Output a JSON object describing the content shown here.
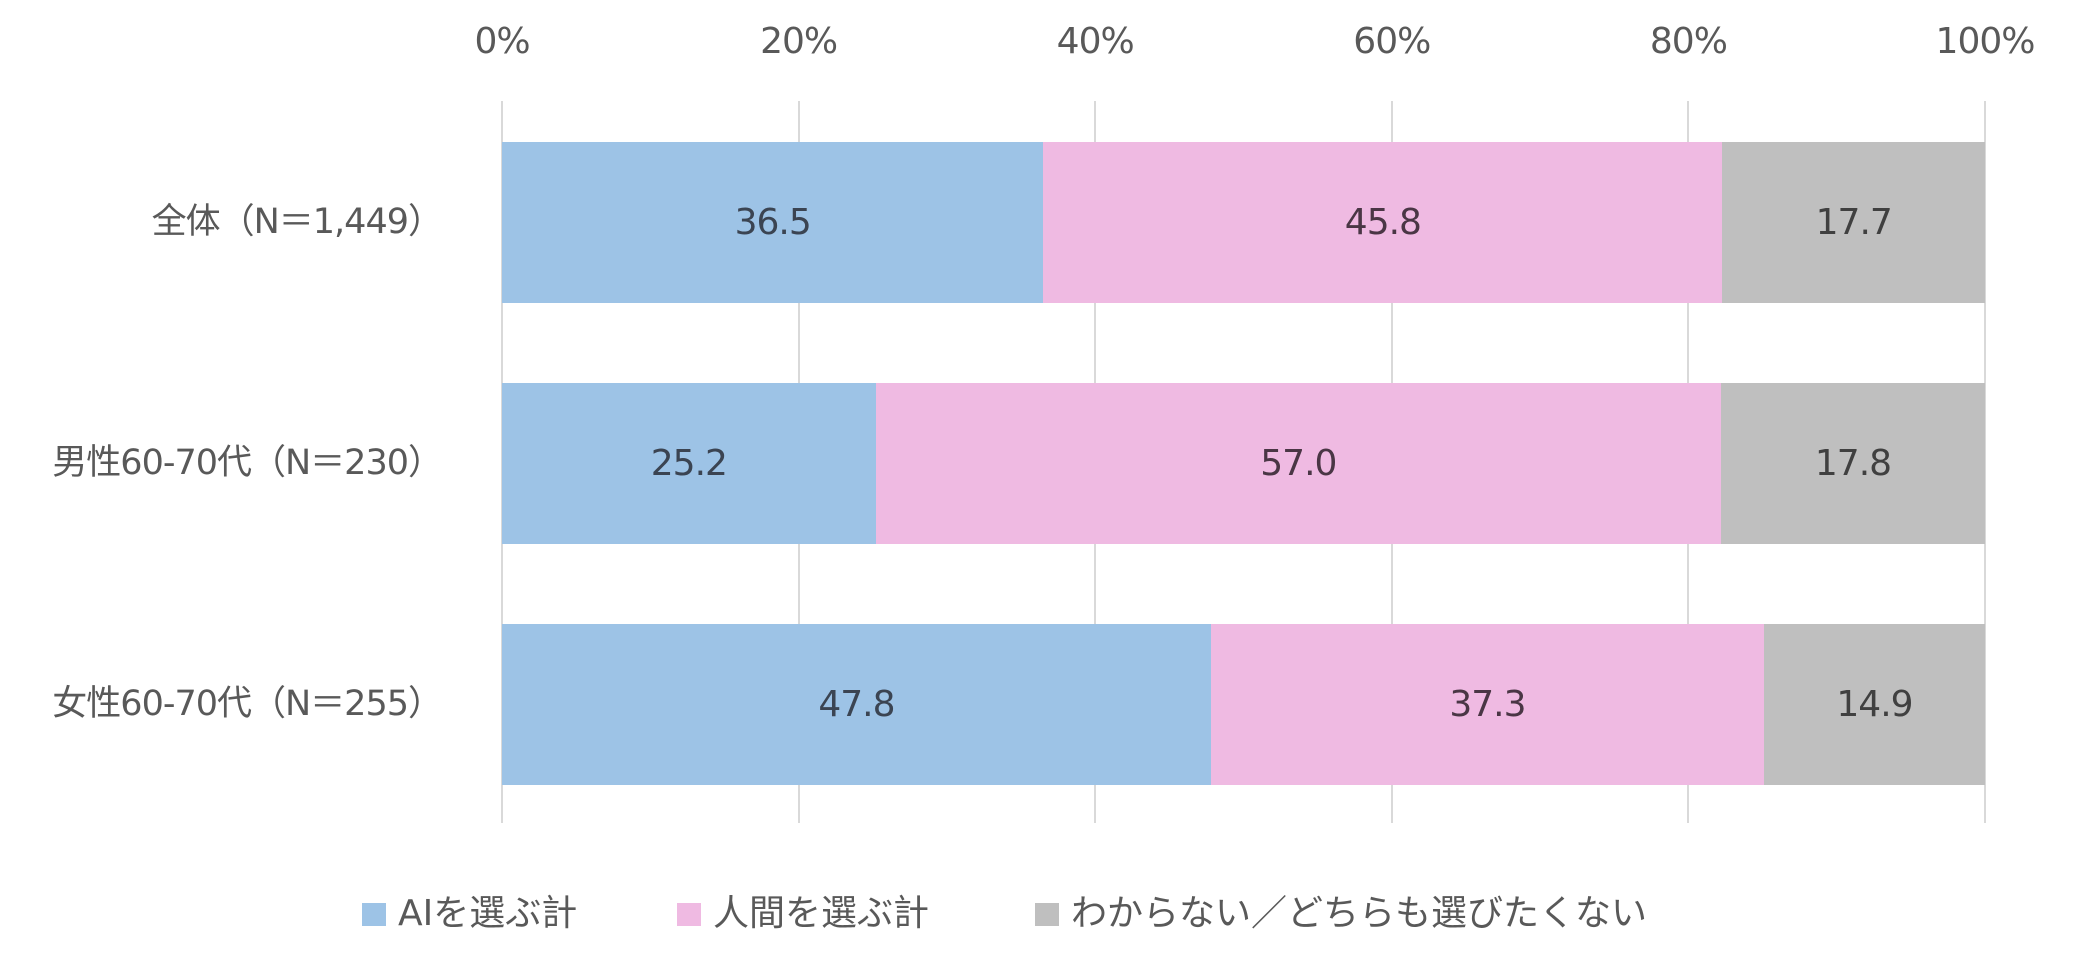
{
  "chart_data": {
    "type": "bar",
    "orientation": "horizontal",
    "stacked": "percent",
    "title": "",
    "xlabel": "",
    "ylabel": "",
    "xlim": [
      0,
      100
    ],
    "x_ticks": [
      "0%",
      "20%",
      "40%",
      "60%",
      "80%",
      "100%"
    ],
    "x_tick_values": [
      0,
      20,
      40,
      60,
      80,
      100
    ],
    "x_axis_position": "top",
    "grid": "vertical",
    "legend_position": "bottom",
    "categories": [
      "全体（N＝1,449）",
      "男性60-70代（N＝230）",
      "女性60-70代（N＝255）"
    ],
    "series": [
      {
        "name": "AIを選ぶ計",
        "color": "#9DC3E6",
        "label_color": "#3B4452",
        "values": [
          36.5,
          25.2,
          47.8
        ],
        "labels": [
          "36.5",
          "25.2",
          "47.8"
        ]
      },
      {
        "name": "人間を選ぶ計",
        "color": "#EFBAE2",
        "label_color": "#4A3645",
        "values": [
          45.8,
          57.0,
          37.3
        ],
        "labels": [
          "45.8",
          "57.0",
          "37.3"
        ]
      },
      {
        "name": "わからない／どちらも選びたくない",
        "color": "#BFBFBF",
        "label_color": "#404040",
        "values": [
          17.7,
          17.8,
          14.9
        ],
        "labels": [
          "17.7",
          "17.8",
          "14.9"
        ]
      }
    ]
  },
  "colors": {
    "text": "#595959",
    "gridline": "#D9D9D9",
    "background": "#FFFFFF"
  }
}
